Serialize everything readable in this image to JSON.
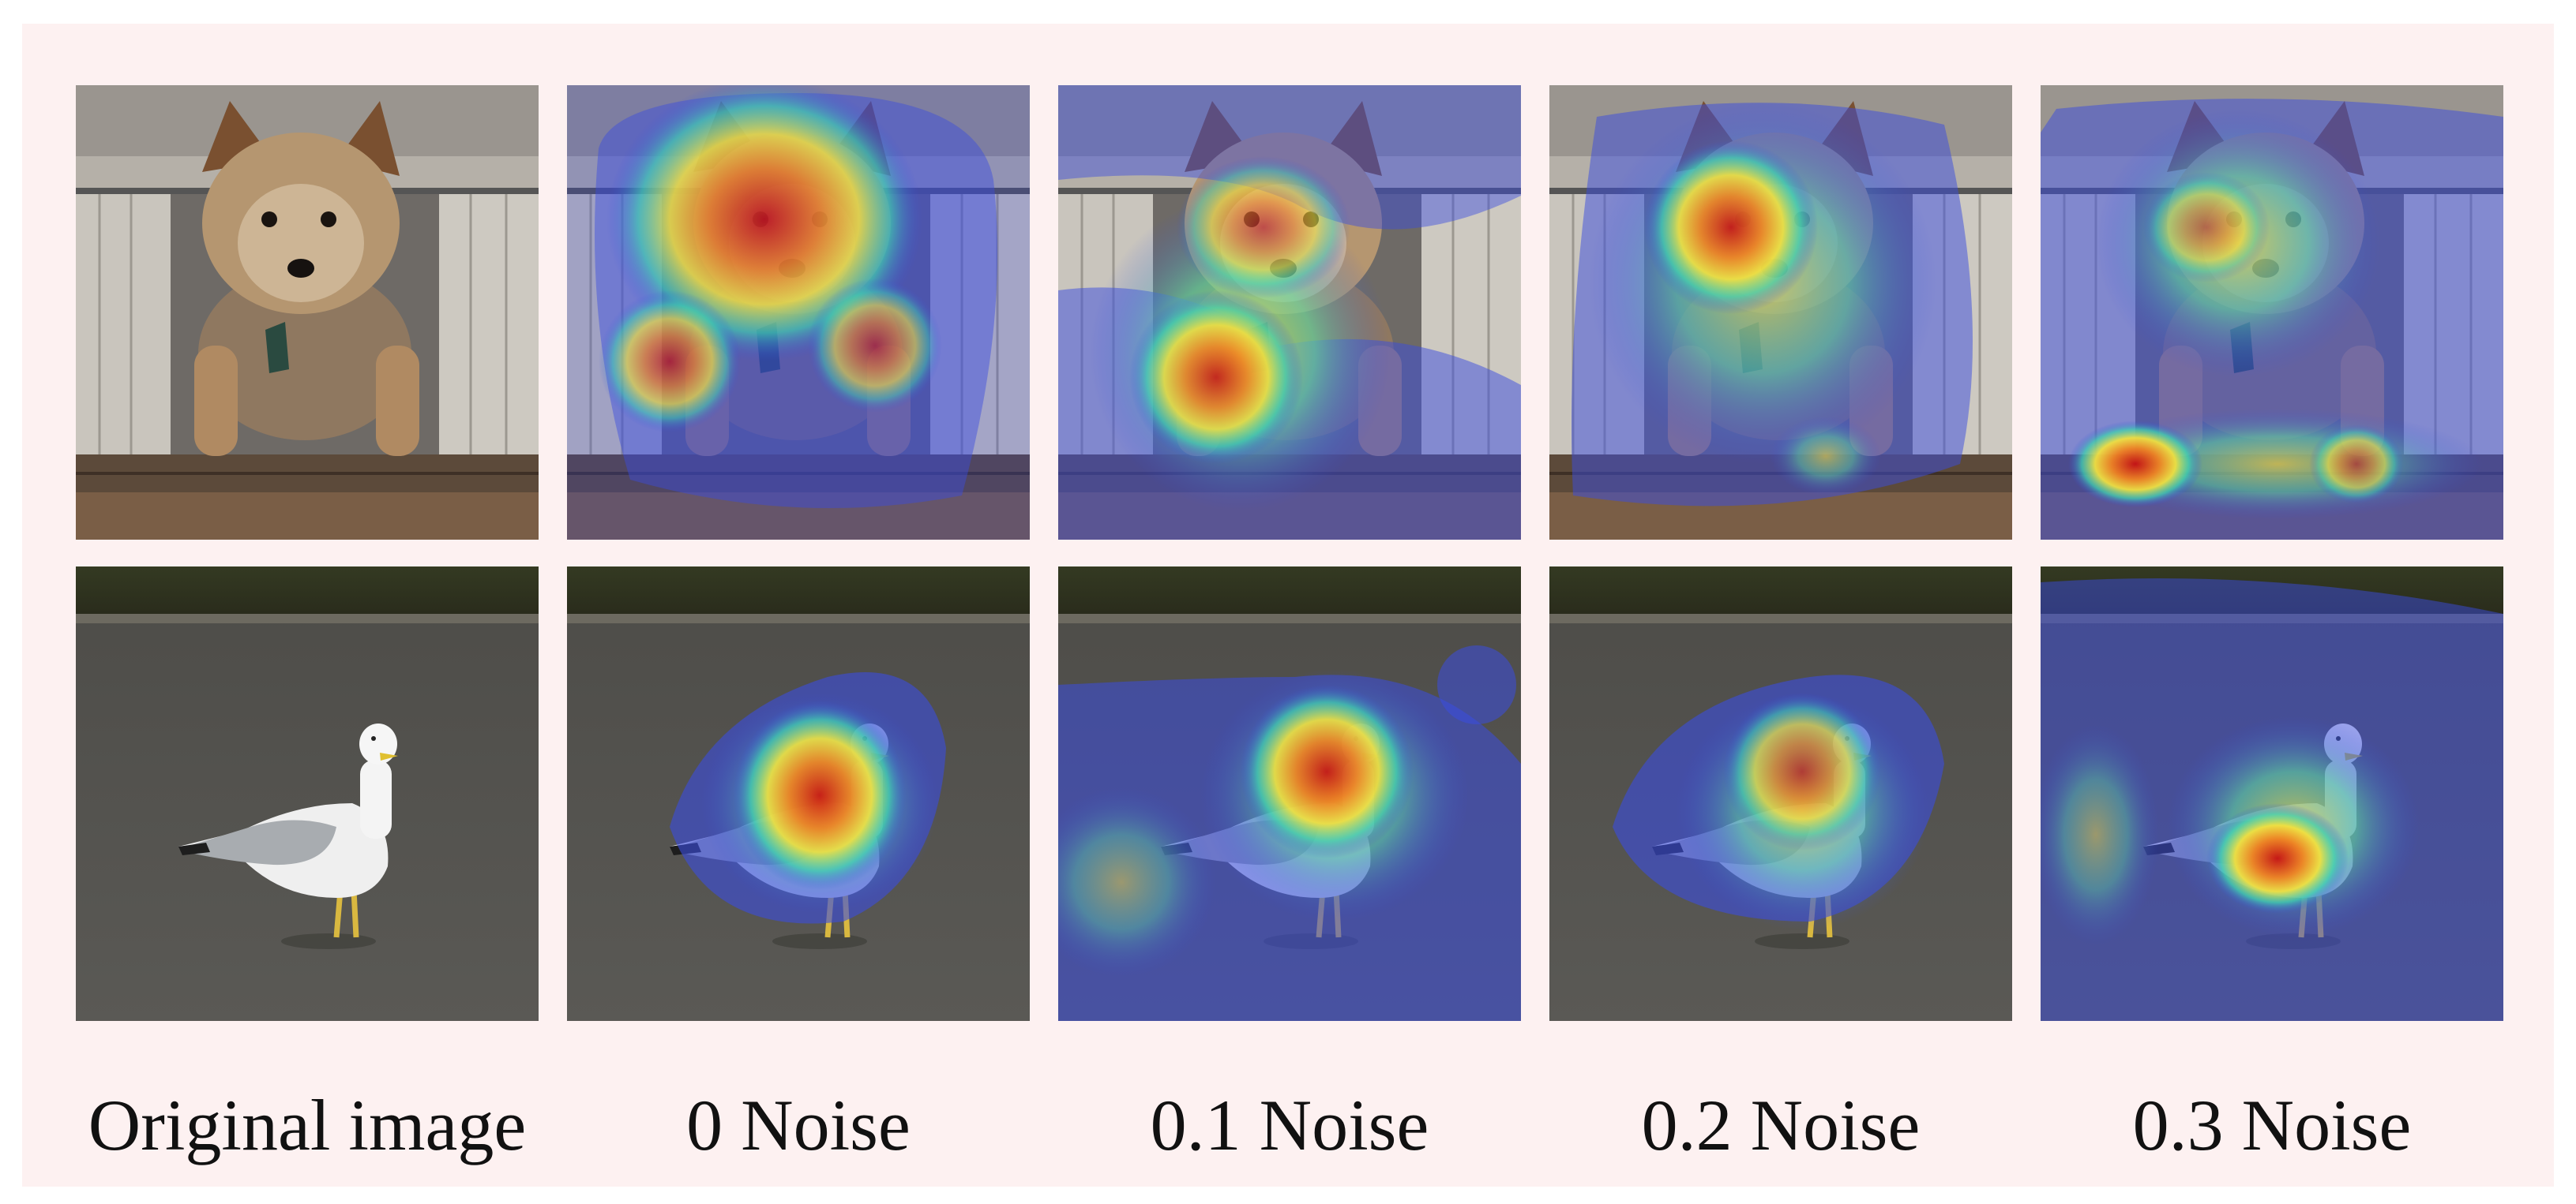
{
  "figure": {
    "columns": [
      {
        "label": "Original image",
        "noise": null
      },
      {
        "label": "0 Noise",
        "noise": 0
      },
      {
        "label": "0.1 Noise",
        "noise": 0.1
      },
      {
        "label": "0.2 Noise",
        "noise": 0.2
      },
      {
        "label": "0.3 Noise",
        "noise": 0.3
      }
    ],
    "rows": [
      {
        "subject": "dog"
      },
      {
        "subject": "seagull"
      }
    ]
  }
}
